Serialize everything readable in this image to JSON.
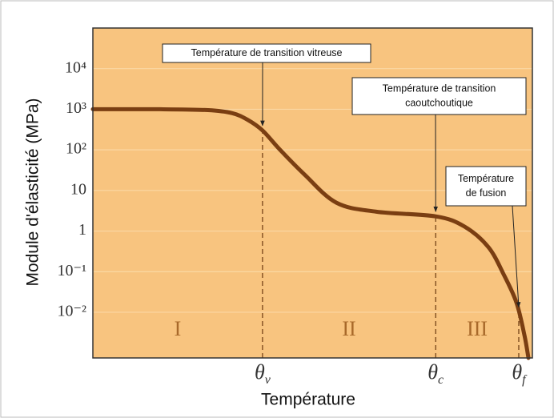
{
  "chart_data": {
    "type": "line",
    "y_label": "Module d'élasticité (MPa)",
    "x_label": "Température",
    "log_y": true,
    "grid": true,
    "ylim": [
      0.00075,
      100000
    ],
    "yticks": [
      {
        "value": 10000,
        "label": "10⁴"
      },
      {
        "value": 1000,
        "label": "10³"
      },
      {
        "value": 100,
        "label": "10²"
      },
      10,
      1,
      {
        "value": 0.1,
        "label": "10⁻¹"
      },
      {
        "value": 0.01,
        "label": "10⁻²"
      }
    ],
    "xlim": [
      0,
      100
    ],
    "series": [
      {
        "color": "#7a3e12",
        "x": [
          0,
          15.3,
          26.2,
          31.7,
          35.2,
          38.6,
          42.6,
          48.1,
          55.4,
          64.5,
          78,
          84.5,
          90,
          93.6,
          96.4,
          98.2,
          99.1
        ],
        "values": [
          1000,
          1000,
          950,
          800,
          550,
          300,
          100,
          25,
          5,
          3,
          2.3,
          1.3,
          0.4,
          0.08,
          0.017,
          0.0027,
          0.00075
        ]
      }
    ],
    "markers": [
      {
        "x": 38.6,
        "symbol": "θ",
        "sub": "v"
      },
      {
        "x": 78,
        "symbol": "θ",
        "sub": "c"
      },
      {
        "x": 96.9,
        "symbol": "θ",
        "sub": "f"
      }
    ],
    "regions": [
      "I",
      "II",
      "III"
    ],
    "annotations": [
      {
        "lines": [
          "Température de transition vitreuse"
        ]
      },
      {
        "lines": [
          "Température de transition",
          "caoutchoutique"
        ]
      },
      {
        "lines": [
          "Température",
          "de fusion"
        ]
      }
    ]
  }
}
